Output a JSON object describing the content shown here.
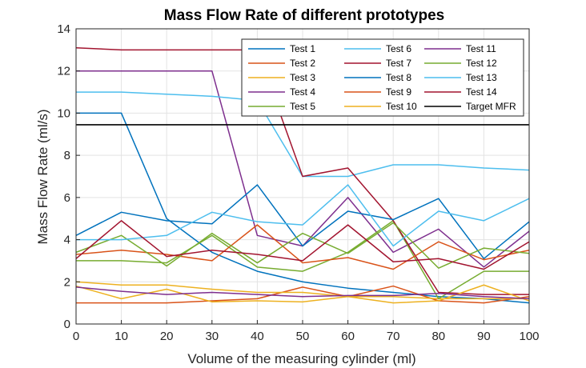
{
  "chart_data": {
    "type": "line",
    "title": "Mass Flow Rate of different prototypes",
    "xlabel": "Volume of the measuring cylinder (ml)",
    "ylabel": "Mass Flow Rate (ml/s)",
    "xlim": [
      0,
      100
    ],
    "ylim": [
      0,
      14
    ],
    "x": [
      0,
      10,
      20,
      30,
      40,
      50,
      60,
      70,
      80,
      90,
      100
    ],
    "xticks": [
      "0",
      "10",
      "20",
      "30",
      "40",
      "50",
      "60",
      "70",
      "80",
      "90",
      "100"
    ],
    "yticks": [
      "0",
      "2",
      "4",
      "6",
      "8",
      "10",
      "12",
      "14"
    ],
    "grid": true,
    "legend_position": "top-right",
    "target_mfr": {
      "name": "Target MFR",
      "value": 9.45,
      "color": "#000000"
    },
    "series": [
      {
        "name": "Test 1",
        "color": "#0072BD",
        "values": [
          10.0,
          10.0,
          5.0,
          3.4,
          2.5,
          2.0,
          1.7,
          1.5,
          1.3,
          1.2,
          1.0
        ]
      },
      {
        "name": "Test 2",
        "color": "#D95319",
        "values": [
          1.0,
          1.0,
          1.0,
          1.1,
          1.2,
          1.75,
          1.3,
          1.8,
          1.1,
          1.0,
          1.3
        ]
      },
      {
        "name": "Test 3",
        "color": "#EDB120",
        "values": [
          2.0,
          1.85,
          1.85,
          1.65,
          1.5,
          1.5,
          1.3,
          1.3,
          1.2,
          1.2,
          1.2
        ]
      },
      {
        "name": "Test 4",
        "color": "#7E2F8E",
        "values": [
          12.0,
          12.0,
          12.0,
          12.0,
          4.2,
          3.7,
          6.0,
          3.4,
          4.5,
          2.7,
          4.4
        ]
      },
      {
        "name": "Test 5",
        "color": "#77AC30",
        "values": [
          3.0,
          3.0,
          2.9,
          4.2,
          2.7,
          2.5,
          3.4,
          4.9,
          1.2,
          2.5,
          2.5
        ]
      },
      {
        "name": "Test 6",
        "color": "#4DBEEE",
        "values": [
          11.0,
          11.0,
          10.9,
          10.8,
          10.6,
          7.0,
          7.0,
          7.55,
          7.55,
          7.4,
          7.3
        ]
      },
      {
        "name": "Test 7",
        "color": "#A2142F",
        "values": [
          13.1,
          13.0,
          13.0,
          13.0,
          13.0,
          7.0,
          7.4,
          4.9,
          1.5,
          1.4,
          1.4
        ]
      },
      {
        "name": "Test 8",
        "color": "#0072BD",
        "values": [
          4.2,
          5.3,
          4.9,
          4.75,
          6.6,
          3.7,
          5.35,
          4.95,
          5.95,
          3.1,
          4.85
        ]
      },
      {
        "name": "Test 9",
        "color": "#D95319",
        "values": [
          3.3,
          3.5,
          3.3,
          3.0,
          4.7,
          2.9,
          3.15,
          2.6,
          3.9,
          3.05,
          3.5
        ]
      },
      {
        "name": "Test 10",
        "color": "#EDB120",
        "values": [
          1.8,
          1.2,
          1.65,
          1.05,
          1.1,
          1.05,
          1.3,
          1.0,
          1.1,
          1.85,
          1.1
        ]
      },
      {
        "name": "Test 11",
        "color": "#7E2F8E",
        "values": [
          1.75,
          1.55,
          1.4,
          1.5,
          1.4,
          1.3,
          1.35,
          1.35,
          1.45,
          1.3,
          1.2
        ]
      },
      {
        "name": "Test 12",
        "color": "#77AC30",
        "values": [
          3.4,
          4.2,
          2.75,
          4.3,
          2.9,
          4.3,
          3.35,
          4.8,
          2.65,
          3.6,
          3.35
        ]
      },
      {
        "name": "Test 13",
        "color": "#4DBEEE",
        "values": [
          4.0,
          4.0,
          4.2,
          5.3,
          4.85,
          4.7,
          6.6,
          3.7,
          5.35,
          4.9,
          5.95
        ]
      },
      {
        "name": "Test 14",
        "color": "#A2142F",
        "values": [
          3.1,
          4.9,
          3.2,
          3.5,
          3.3,
          3.0,
          4.7,
          2.95,
          3.1,
          2.6,
          3.9
        ]
      }
    ]
  }
}
